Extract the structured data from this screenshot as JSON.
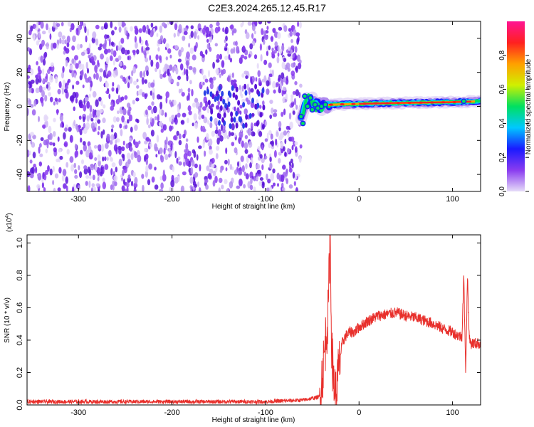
{
  "title": "C2E3.2024.265.12.45.R17",
  "colors": {
    "snr_line": "#e8302c",
    "spectrogram_noise": "#8a3cf0",
    "spectrogram_peak": "#ff2020"
  },
  "chart_data": [
    {
      "type": "heatmap",
      "name": "spectrogram",
      "xlabel": "Height of straight line (km)",
      "ylabel": "Frequency (Hz)",
      "xlim": [
        -355,
        130
      ],
      "ylim": [
        -50,
        50
      ],
      "x_ticks": [
        -300,
        -200,
        -100,
        0,
        100
      ],
      "y_ticks": [
        -40,
        -20,
        0,
        20,
        40
      ],
      "colorbar": {
        "label": "Normalized spectral amplitude",
        "range": [
          0,
          1
        ],
        "ticks": [
          "0.0",
          "0.2",
          "0.4",
          "0.6",
          "0.8"
        ],
        "colors": [
          "#e6dcf8",
          "#8a3cf0",
          "#1a1aff",
          "#00c8ff",
          "#00e060",
          "#d0f000",
          "#ffa000",
          "#ff2020",
          "#ff1493"
        ]
      },
      "noise_region_x": [
        -355,
        -62
      ],
      "signal_trace": [
        {
          "x": -62,
          "freq": -6,
          "amp": 0.35
        },
        {
          "x": -55,
          "freq": 5,
          "amp": 0.5
        },
        {
          "x": -45,
          "freq": 0,
          "amp": 0.45
        },
        {
          "x": -30,
          "freq": 1,
          "amp": 0.55
        },
        {
          "x": 0,
          "freq": 1.5,
          "amp": 0.75
        },
        {
          "x": 40,
          "freq": 2,
          "amp": 0.9
        },
        {
          "x": 100,
          "freq": 2.5,
          "amp": 0.85
        },
        {
          "x": 130,
          "freq": 3,
          "amp": 0.6
        }
      ]
    },
    {
      "type": "line",
      "name": "snr",
      "xlabel": "Height of straight line (km)",
      "ylabel": "SNR (10 * v/v)",
      "y_multiplier_label": "(x10",
      "y_multiplier_exp": "4",
      "y_multiplier_close": ")",
      "xlim": [
        -355,
        130
      ],
      "ylim": [
        0,
        1.05
      ],
      "x_ticks": [
        -300,
        -200,
        -100,
        0,
        100
      ],
      "y_ticks": [
        "0.0",
        "0.2",
        "0.4",
        "0.6",
        "0.8",
        "1.0"
      ],
      "series": [
        {
          "x": [
            -355,
            -300,
            -200,
            -100,
            -60,
            -42,
            -38,
            -35,
            -33,
            -31,
            -29,
            -27,
            -25,
            -22,
            -20,
            -18,
            -15,
            -10,
            -5,
            0,
            10,
            20,
            30,
            40,
            50,
            60,
            70,
            80,
            90,
            100,
            105,
            110,
            112,
            114,
            116,
            118,
            120,
            125,
            130
          ],
          "y": [
            0.02,
            0.02,
            0.02,
            0.02,
            0.03,
            0.05,
            0.25,
            0.45,
            0.55,
            1.05,
            0.3,
            0.15,
            0.05,
            0.2,
            0.3,
            0.38,
            0.42,
            0.45,
            0.45,
            0.48,
            0.52,
            0.55,
            0.56,
            0.57,
            0.55,
            0.54,
            0.52,
            0.5,
            0.47,
            0.45,
            0.43,
            0.42,
            0.8,
            0.2,
            0.8,
            0.4,
            0.38,
            0.38,
            0.38
          ]
        }
      ]
    }
  ]
}
